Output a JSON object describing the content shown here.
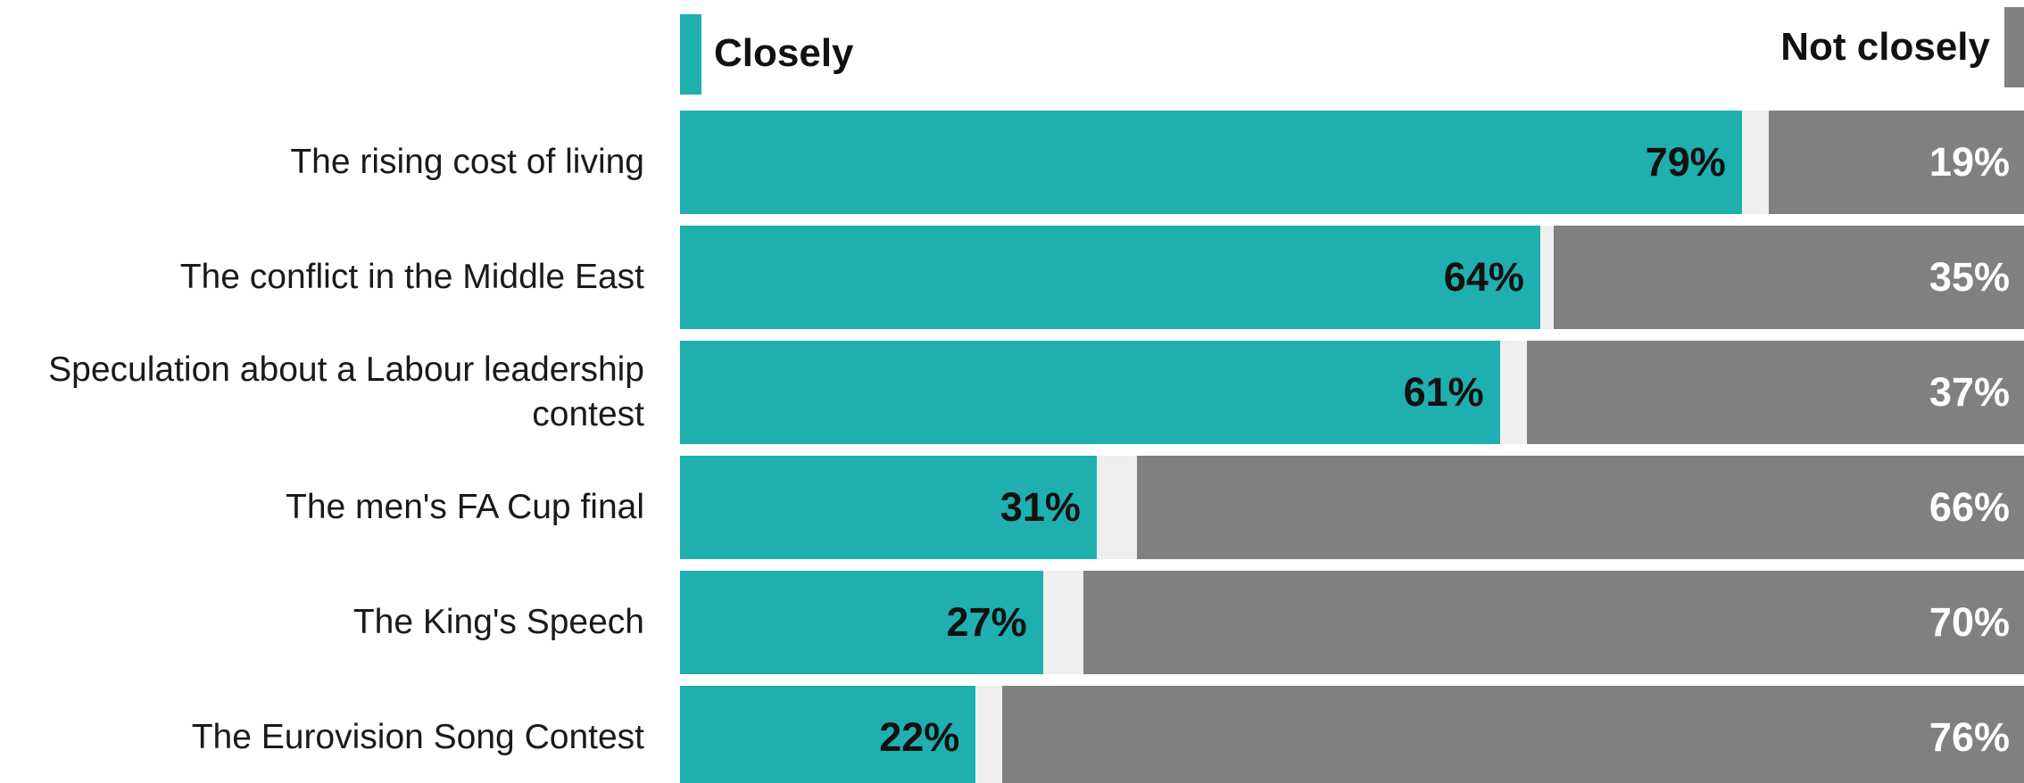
{
  "chart_data": {
    "type": "bar",
    "orientation": "horizontal",
    "stacked": true,
    "legend_position": "top",
    "categories": [
      "The rising cost of living",
      "The conflict in the Middle East",
      "Speculation about a Labour leadership contest",
      "The men's FA Cup final",
      "The King's Speech",
      "The Eurovision Song Contest"
    ],
    "series": [
      {
        "name": "Closely",
        "color": "#1fafaf",
        "values": [
          79,
          64,
          61,
          31,
          27,
          22
        ],
        "labels": [
          "79%",
          "64%",
          "61%",
          "31%",
          "27%",
          "22%"
        ]
      },
      {
        "name": "Not closely",
        "color": "#808080",
        "values": [
          19,
          35,
          37,
          66,
          70,
          76
        ],
        "labels": [
          "19%",
          "35%",
          "37%",
          "66%",
          "70%",
          "76%"
        ]
      }
    ],
    "xlim": [
      0,
      100
    ],
    "track_color": "#efefef"
  }
}
